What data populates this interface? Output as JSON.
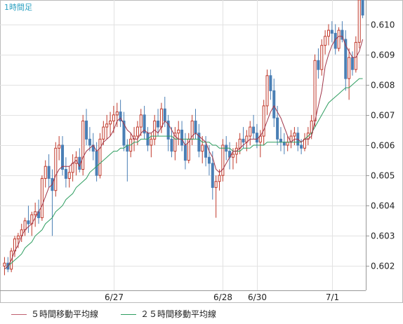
{
  "chart_data": {
    "type": "candlestick",
    "title": "1時間足",
    "ylim": [
      0.6012,
      0.6108
    ],
    "y_ticks": [
      0.602,
      0.603,
      0.604,
      0.605,
      0.606,
      0.607,
      0.608,
      0.609,
      0.61
    ],
    "x_tick_labels": [
      {
        "label": "6/27",
        "index": 32
      },
      {
        "label": "6/28",
        "index": 64
      },
      {
        "label": "6/30",
        "index": 74
      },
      {
        "label": "7/1",
        "index": 96
      }
    ],
    "colors": {
      "up": "#c0392b",
      "down": "#4a7fb5",
      "ma5": "#a0364a",
      "ma25": "#2e9e60",
      "title": "#2aa0c0"
    },
    "grid": true,
    "legend_position": "bottom",
    "series_names": {
      "ma5": "５時間移動平均線",
      "ma25": "２５時間移動平均線"
    },
    "candles": [
      [
        0.602,
        0.6023,
        0.6017,
        0.6021
      ],
      [
        0.6021,
        0.6023,
        0.6018,
        0.6019
      ],
      [
        0.6019,
        0.6026,
        0.6018,
        0.6025
      ],
      [
        0.6025,
        0.603,
        0.6023,
        0.6029
      ],
      [
        0.6029,
        0.6031,
        0.6026,
        0.603
      ],
      [
        0.603,
        0.6034,
        0.6028,
        0.6032
      ],
      [
        0.6032,
        0.6036,
        0.603,
        0.6035
      ],
      [
        0.6035,
        0.604,
        0.6031,
        0.6034
      ],
      [
        0.6034,
        0.6038,
        0.603,
        0.6037
      ],
      [
        0.6037,
        0.6041,
        0.6033,
        0.6038
      ],
      [
        0.6038,
        0.6042,
        0.6034,
        0.6036
      ],
      [
        0.6036,
        0.605,
        0.6035,
        0.6049
      ],
      [
        0.6049,
        0.6055,
        0.6046,
        0.6053
      ],
      [
        0.6053,
        0.6057,
        0.6046,
        0.6049
      ],
      [
        0.6049,
        0.6052,
        0.603,
        0.6045
      ],
      [
        0.6045,
        0.6061,
        0.6043,
        0.6059
      ],
      [
        0.6059,
        0.6063,
        0.6055,
        0.606
      ],
      [
        0.606,
        0.6063,
        0.605,
        0.6052
      ],
      [
        0.6052,
        0.6056,
        0.6046,
        0.6049
      ],
      [
        0.6049,
        0.6053,
        0.6046,
        0.6051
      ],
      [
        0.6051,
        0.6057,
        0.6048,
        0.6054
      ],
      [
        0.6054,
        0.6058,
        0.605,
        0.6056
      ],
      [
        0.6056,
        0.6059,
        0.6051,
        0.6052
      ],
      [
        0.6052,
        0.607,
        0.605,
        0.6068
      ],
      [
        0.6068,
        0.6072,
        0.606,
        0.6062
      ],
      [
        0.6062,
        0.6066,
        0.6058,
        0.606
      ],
      [
        0.606,
        0.6064,
        0.6055,
        0.6058
      ],
      [
        0.6058,
        0.6061,
        0.6048,
        0.605
      ],
      [
        0.605,
        0.6064,
        0.6049,
        0.6062
      ],
      [
        0.6062,
        0.6068,
        0.606,
        0.6066
      ],
      [
        0.6066,
        0.607,
        0.6062,
        0.6067
      ],
      [
        0.6067,
        0.6071,
        0.6063,
        0.6068
      ],
      [
        0.6068,
        0.6073,
        0.6064,
        0.607
      ],
      [
        0.607,
        0.6074,
        0.6066,
        0.6071
      ],
      [
        0.6071,
        0.6075,
        0.6066,
        0.6068
      ],
      [
        0.6068,
        0.6071,
        0.6058,
        0.606
      ],
      [
        0.606,
        0.6062,
        0.6048,
        0.6058
      ],
      [
        0.6058,
        0.6064,
        0.6056,
        0.6062
      ],
      [
        0.6062,
        0.6066,
        0.6058,
        0.6063
      ],
      [
        0.6063,
        0.6068,
        0.606,
        0.6066
      ],
      [
        0.6066,
        0.6072,
        0.6063,
        0.607
      ],
      [
        0.607,
        0.6073,
        0.6062,
        0.6064
      ],
      [
        0.6064,
        0.6066,
        0.6058,
        0.606
      ],
      [
        0.606,
        0.6064,
        0.6056,
        0.6062
      ],
      [
        0.6062,
        0.607,
        0.606,
        0.6068
      ],
      [
        0.6068,
        0.6072,
        0.6063,
        0.6066
      ],
      [
        0.6066,
        0.6074,
        0.6064,
        0.6072
      ],
      [
        0.6072,
        0.6076,
        0.6066,
        0.6068
      ],
      [
        0.6068,
        0.607,
        0.6058,
        0.6062
      ],
      [
        0.6062,
        0.6066,
        0.6056,
        0.6058
      ],
      [
        0.6058,
        0.6066,
        0.6055,
        0.6064
      ],
      [
        0.6064,
        0.6068,
        0.606,
        0.6065
      ],
      [
        0.6065,
        0.6068,
        0.6058,
        0.606
      ],
      [
        0.606,
        0.6064,
        0.6052,
        0.6055
      ],
      [
        0.6055,
        0.6064,
        0.6054,
        0.6062
      ],
      [
        0.6062,
        0.607,
        0.606,
        0.6068
      ],
      [
        0.6068,
        0.6072,
        0.6062,
        0.6064
      ],
      [
        0.6064,
        0.6067,
        0.6056,
        0.6058
      ],
      [
        0.6058,
        0.6063,
        0.6054,
        0.606
      ],
      [
        0.606,
        0.6063,
        0.6053,
        0.6056
      ],
      [
        0.6056,
        0.606,
        0.605,
        0.6054
      ],
      [
        0.6054,
        0.6058,
        0.6042,
        0.6046
      ],
      [
        0.6046,
        0.605,
        0.6036,
        0.6048
      ],
      [
        0.6048,
        0.6052,
        0.6045,
        0.605
      ],
      [
        0.605,
        0.6062,
        0.6048,
        0.606
      ],
      [
        0.606,
        0.6063,
        0.6055,
        0.6058
      ],
      [
        0.6058,
        0.6061,
        0.6052,
        0.6056
      ],
      [
        0.6056,
        0.6059,
        0.6052,
        0.6057
      ],
      [
        0.6057,
        0.6061,
        0.6054,
        0.6059
      ],
      [
        0.6059,
        0.6064,
        0.6057,
        0.6062
      ],
      [
        0.6062,
        0.6066,
        0.6059,
        0.6061
      ],
      [
        0.6061,
        0.6065,
        0.6058,
        0.6063
      ],
      [
        0.6063,
        0.6068,
        0.606,
        0.6066
      ],
      [
        0.6066,
        0.607,
        0.6062,
        0.6064
      ],
      [
        0.6064,
        0.6067,
        0.6059,
        0.6061
      ],
      [
        0.6061,
        0.6065,
        0.6056,
        0.6063
      ],
      [
        0.6063,
        0.6075,
        0.606,
        0.6073
      ],
      [
        0.6073,
        0.6085,
        0.607,
        0.6083
      ],
      [
        0.6083,
        0.6085,
        0.6075,
        0.6078
      ],
      [
        0.6078,
        0.6082,
        0.6066,
        0.6069
      ],
      [
        0.6069,
        0.6073,
        0.606,
        0.6062
      ],
      [
        0.6062,
        0.6066,
        0.6058,
        0.6061
      ],
      [
        0.6061,
        0.6064,
        0.6057,
        0.606
      ],
      [
        0.606,
        0.6063,
        0.6058,
        0.6061
      ],
      [
        0.6061,
        0.6065,
        0.6059,
        0.6063
      ],
      [
        0.6063,
        0.6066,
        0.606,
        0.6064
      ],
      [
        0.6064,
        0.6066,
        0.6058,
        0.606
      ],
      [
        0.606,
        0.6062,
        0.6057,
        0.6059
      ],
      [
        0.6059,
        0.6064,
        0.6058,
        0.6062
      ],
      [
        0.6062,
        0.6066,
        0.606,
        0.6064
      ],
      [
        0.6064,
        0.607,
        0.6062,
        0.6068
      ],
      [
        0.6068,
        0.609,
        0.6066,
        0.6088
      ],
      [
        0.6088,
        0.6092,
        0.6082,
        0.6085
      ],
      [
        0.6085,
        0.6095,
        0.6083,
        0.6093
      ],
      [
        0.6093,
        0.6098,
        0.609,
        0.6096
      ],
      [
        0.6096,
        0.61,
        0.6093,
        0.6098
      ],
      [
        0.6098,
        0.6101,
        0.6094,
        0.6097
      ],
      [
        0.6097,
        0.61,
        0.609,
        0.6092
      ],
      [
        0.6092,
        0.6099,
        0.6091,
        0.6098
      ],
      [
        0.6098,
        0.6101,
        0.6094,
        0.6095
      ],
      [
        0.6095,
        0.6098,
        0.6078,
        0.6082
      ],
      [
        0.6082,
        0.6092,
        0.6075,
        0.6089
      ],
      [
        0.6089,
        0.6091,
        0.6083,
        0.6085
      ],
      [
        0.6085,
        0.6096,
        0.6084,
        0.6094
      ],
      [
        0.6094,
        0.6109,
        0.6092,
        0.6108
      ],
      [
        0.6108,
        0.611,
        0.6102,
        0.6103
      ]
    ],
    "ma5": [
      0.6019,
      0.602,
      0.6022,
      0.6025,
      0.6027,
      0.603,
      0.6032,
      0.6033,
      0.6034,
      0.6036,
      0.6038,
      0.604,
      0.6043,
      0.6046,
      0.6047,
      0.605,
      0.6052,
      0.6053,
      0.6053,
      0.6053,
      0.6054,
      0.6055,
      0.6053,
      0.6056,
      0.6058,
      0.6059,
      0.606,
      0.6058,
      0.6059,
      0.6061,
      0.6062,
      0.6063,
      0.6065,
      0.6068,
      0.6069,
      0.6067,
      0.6065,
      0.6064,
      0.6062,
      0.6062,
      0.6064,
      0.6065,
      0.6064,
      0.6064,
      0.6065,
      0.6064,
      0.6066,
      0.6068,
      0.6067,
      0.6065,
      0.6063,
      0.6062,
      0.6062,
      0.606,
      0.6061,
      0.6063,
      0.6064,
      0.6063,
      0.6062,
      0.6061,
      0.6058,
      0.6056,
      0.6052,
      0.6051,
      0.6052,
      0.6054,
      0.6056,
      0.6058,
      0.6058,
      0.6059,
      0.606,
      0.6061,
      0.6062,
      0.6062,
      0.6062,
      0.6063,
      0.6065,
      0.6068,
      0.6071,
      0.6073,
      0.6071,
      0.6069,
      0.6066,
      0.6063,
      0.6061,
      0.6062,
      0.6062,
      0.6061,
      0.6062,
      0.6062,
      0.6063,
      0.6068,
      0.6073,
      0.6078,
      0.6086,
      0.609,
      0.6093,
      0.6095,
      0.6096,
      0.6096,
      0.6093,
      0.6091,
      0.6089,
      0.6089,
      0.6091,
      0.6095
    ],
    "ma25": [
      0.6019,
      0.602,
      0.6021,
      0.6022,
      0.6023,
      0.6024,
      0.6026,
      0.6027,
      0.6028,
      0.603,
      0.6031,
      0.6032,
      0.6034,
      0.6035,
      0.6036,
      0.6038,
      0.6039,
      0.604,
      0.6042,
      0.6043,
      0.6044,
      0.6046,
      0.6047,
      0.6048,
      0.6049,
      0.6051,
      0.6052,
      0.6053,
      0.6054,
      0.6055,
      0.6056,
      0.6057,
      0.6058,
      0.6058,
      0.6059,
      0.6059,
      0.606,
      0.606,
      0.6061,
      0.6061,
      0.6062,
      0.6062,
      0.6062,
      0.6063,
      0.6063,
      0.6063,
      0.6063,
      0.6063,
      0.6063,
      0.6063,
      0.6062,
      0.6062,
      0.6062,
      0.6062,
      0.6062,
      0.6062,
      0.6062,
      0.6062,
      0.6061,
      0.6061,
      0.6061,
      0.606,
      0.606,
      0.6059,
      0.6059,
      0.6059,
      0.6059,
      0.6058,
      0.6058,
      0.6058,
      0.6059,
      0.6059,
      0.6059,
      0.606,
      0.606,
      0.606,
      0.606,
      0.6061,
      0.6061,
      0.6061,
      0.6061,
      0.6061,
      0.6061,
      0.6061,
      0.6061,
      0.6061,
      0.6061,
      0.6061,
      0.6062,
      0.6063,
      0.6064,
      0.6066,
      0.6068,
      0.607,
      0.6072,
      0.6074,
      0.6075,
      0.6076,
      0.6077,
      0.6078,
      0.6079,
      0.6079,
      0.608,
      0.6081,
      0.6082,
      0.6082
    ]
  }
}
